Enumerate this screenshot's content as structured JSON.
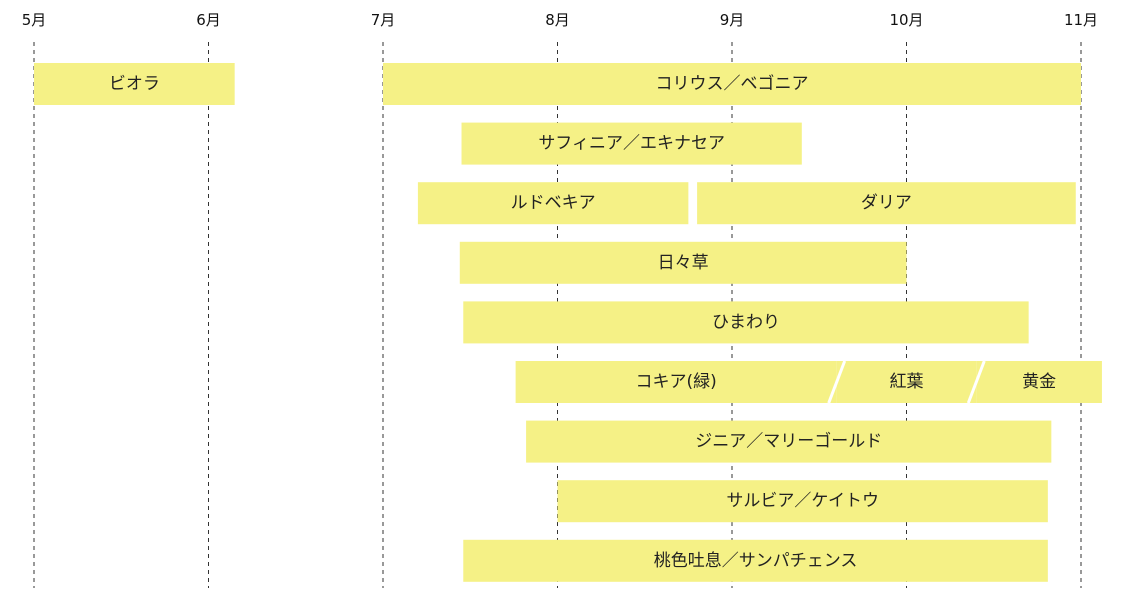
{
  "chart_data": {
    "type": "gantt",
    "months": [
      "5月",
      "6月",
      "7月",
      "8月",
      "9月",
      "10月",
      "11月"
    ],
    "grid": "dashed vertical at each month",
    "bar_color": "#f5f186",
    "rows": [
      [
        {
          "label": "ビオラ",
          "start": 5.0,
          "end": 6.15
        },
        {
          "label": "コリウス／ベゴニア",
          "start": 7.0,
          "end": 11.0
        }
      ],
      [
        {
          "label": "サフィニア／エキナセア",
          "start": 7.45,
          "end": 9.4
        }
      ],
      [
        {
          "label": "ルドベキア",
          "start": 7.2,
          "end": 8.75
        },
        {
          "label": "ダリア",
          "start": 8.8,
          "end": 10.97
        }
      ],
      [
        {
          "label": "日々草",
          "start": 7.44,
          "end": 10.0
        }
      ],
      [
        {
          "label": "ひまわり",
          "start": 7.46,
          "end": 10.7
        }
      ],
      [
        {
          "label": "コキア(緑)",
          "start": 7.76,
          "end": 9.6,
          "segment_group": "kochia"
        },
        {
          "label": "紅葉",
          "start": 9.6,
          "end": 10.4,
          "segment_group": "kochia"
        },
        {
          "label": "黄金",
          "start": 10.4,
          "end": 11.12,
          "segment_group": "kochia"
        }
      ],
      [
        {
          "label": "ジニア／マリーゴールド",
          "start": 7.82,
          "end": 10.83
        }
      ],
      [
        {
          "label": "サルビア／ケイトウ",
          "start": 8.0,
          "end": 10.81
        }
      ],
      [
        {
          "label": "桃色吐息／サンパチェンス",
          "start": 7.46,
          "end": 10.81
        }
      ]
    ]
  }
}
